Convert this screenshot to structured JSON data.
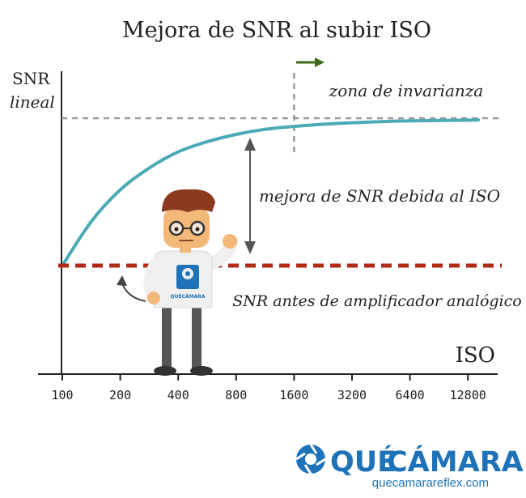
{
  "chart_data": {
    "type": "line",
    "title": "Mejora de SNR al subir ISO",
    "ylabel": [
      "SNR",
      "lineal"
    ],
    "xlabel": "ISO",
    "x_scale": "log2",
    "categories": [
      "100",
      "200",
      "400",
      "800",
      "1600",
      "3200",
      "6400",
      "12800"
    ],
    "series": [
      {
        "values": [
          {
            "x": 100,
            "y": 0.0
          },
          {
            "x": 141,
            "y": 0.3
          },
          {
            "x": 200,
            "y": 0.52
          },
          {
            "x": 283,
            "y": 0.67
          },
          {
            "x": 400,
            "y": 0.78
          },
          {
            "x": 566,
            "y": 0.85
          },
          {
            "x": 800,
            "y": 0.9
          },
          {
            "x": 1131,
            "y": 0.935
          },
          {
            "x": 1600,
            "y": 0.955
          },
          {
            "x": 2263,
            "y": 0.97
          },
          {
            "x": 3200,
            "y": 0.98
          },
          {
            "x": 4525,
            "y": 0.988
          },
          {
            "x": 6400,
            "y": 0.993
          },
          {
            "x": 9051,
            "y": 0.996
          },
          {
            "x": 12800,
            "y": 0.998
          },
          {
            "x": 14500,
            "y": 1.0
          }
        ]
      }
    ],
    "baseline_y": 0,
    "max_y": 1,
    "invariance_start_x": 1600,
    "annotations": {
      "zone": "zona de invarianza",
      "improvement": "mejora de SNR debida al ISO",
      "before": "SNR antes de amplificador analógico"
    },
    "colors": {
      "curve": "#4BAAB6",
      "baseline": "#B22A14",
      "dashed_guide": "#999999",
      "arrow_green": "#3F6A1E",
      "axis": "#222222"
    }
  },
  "brand": {
    "name_part1": "QUÉ",
    "name_part2": "CÁMARA",
    "url": "quecamarareflex.com",
    "color": "#1E73B8",
    "accent": "#5AA9DD"
  },
  "mascot": {
    "shirt_logo_text": "QUÉCÁMARA"
  }
}
